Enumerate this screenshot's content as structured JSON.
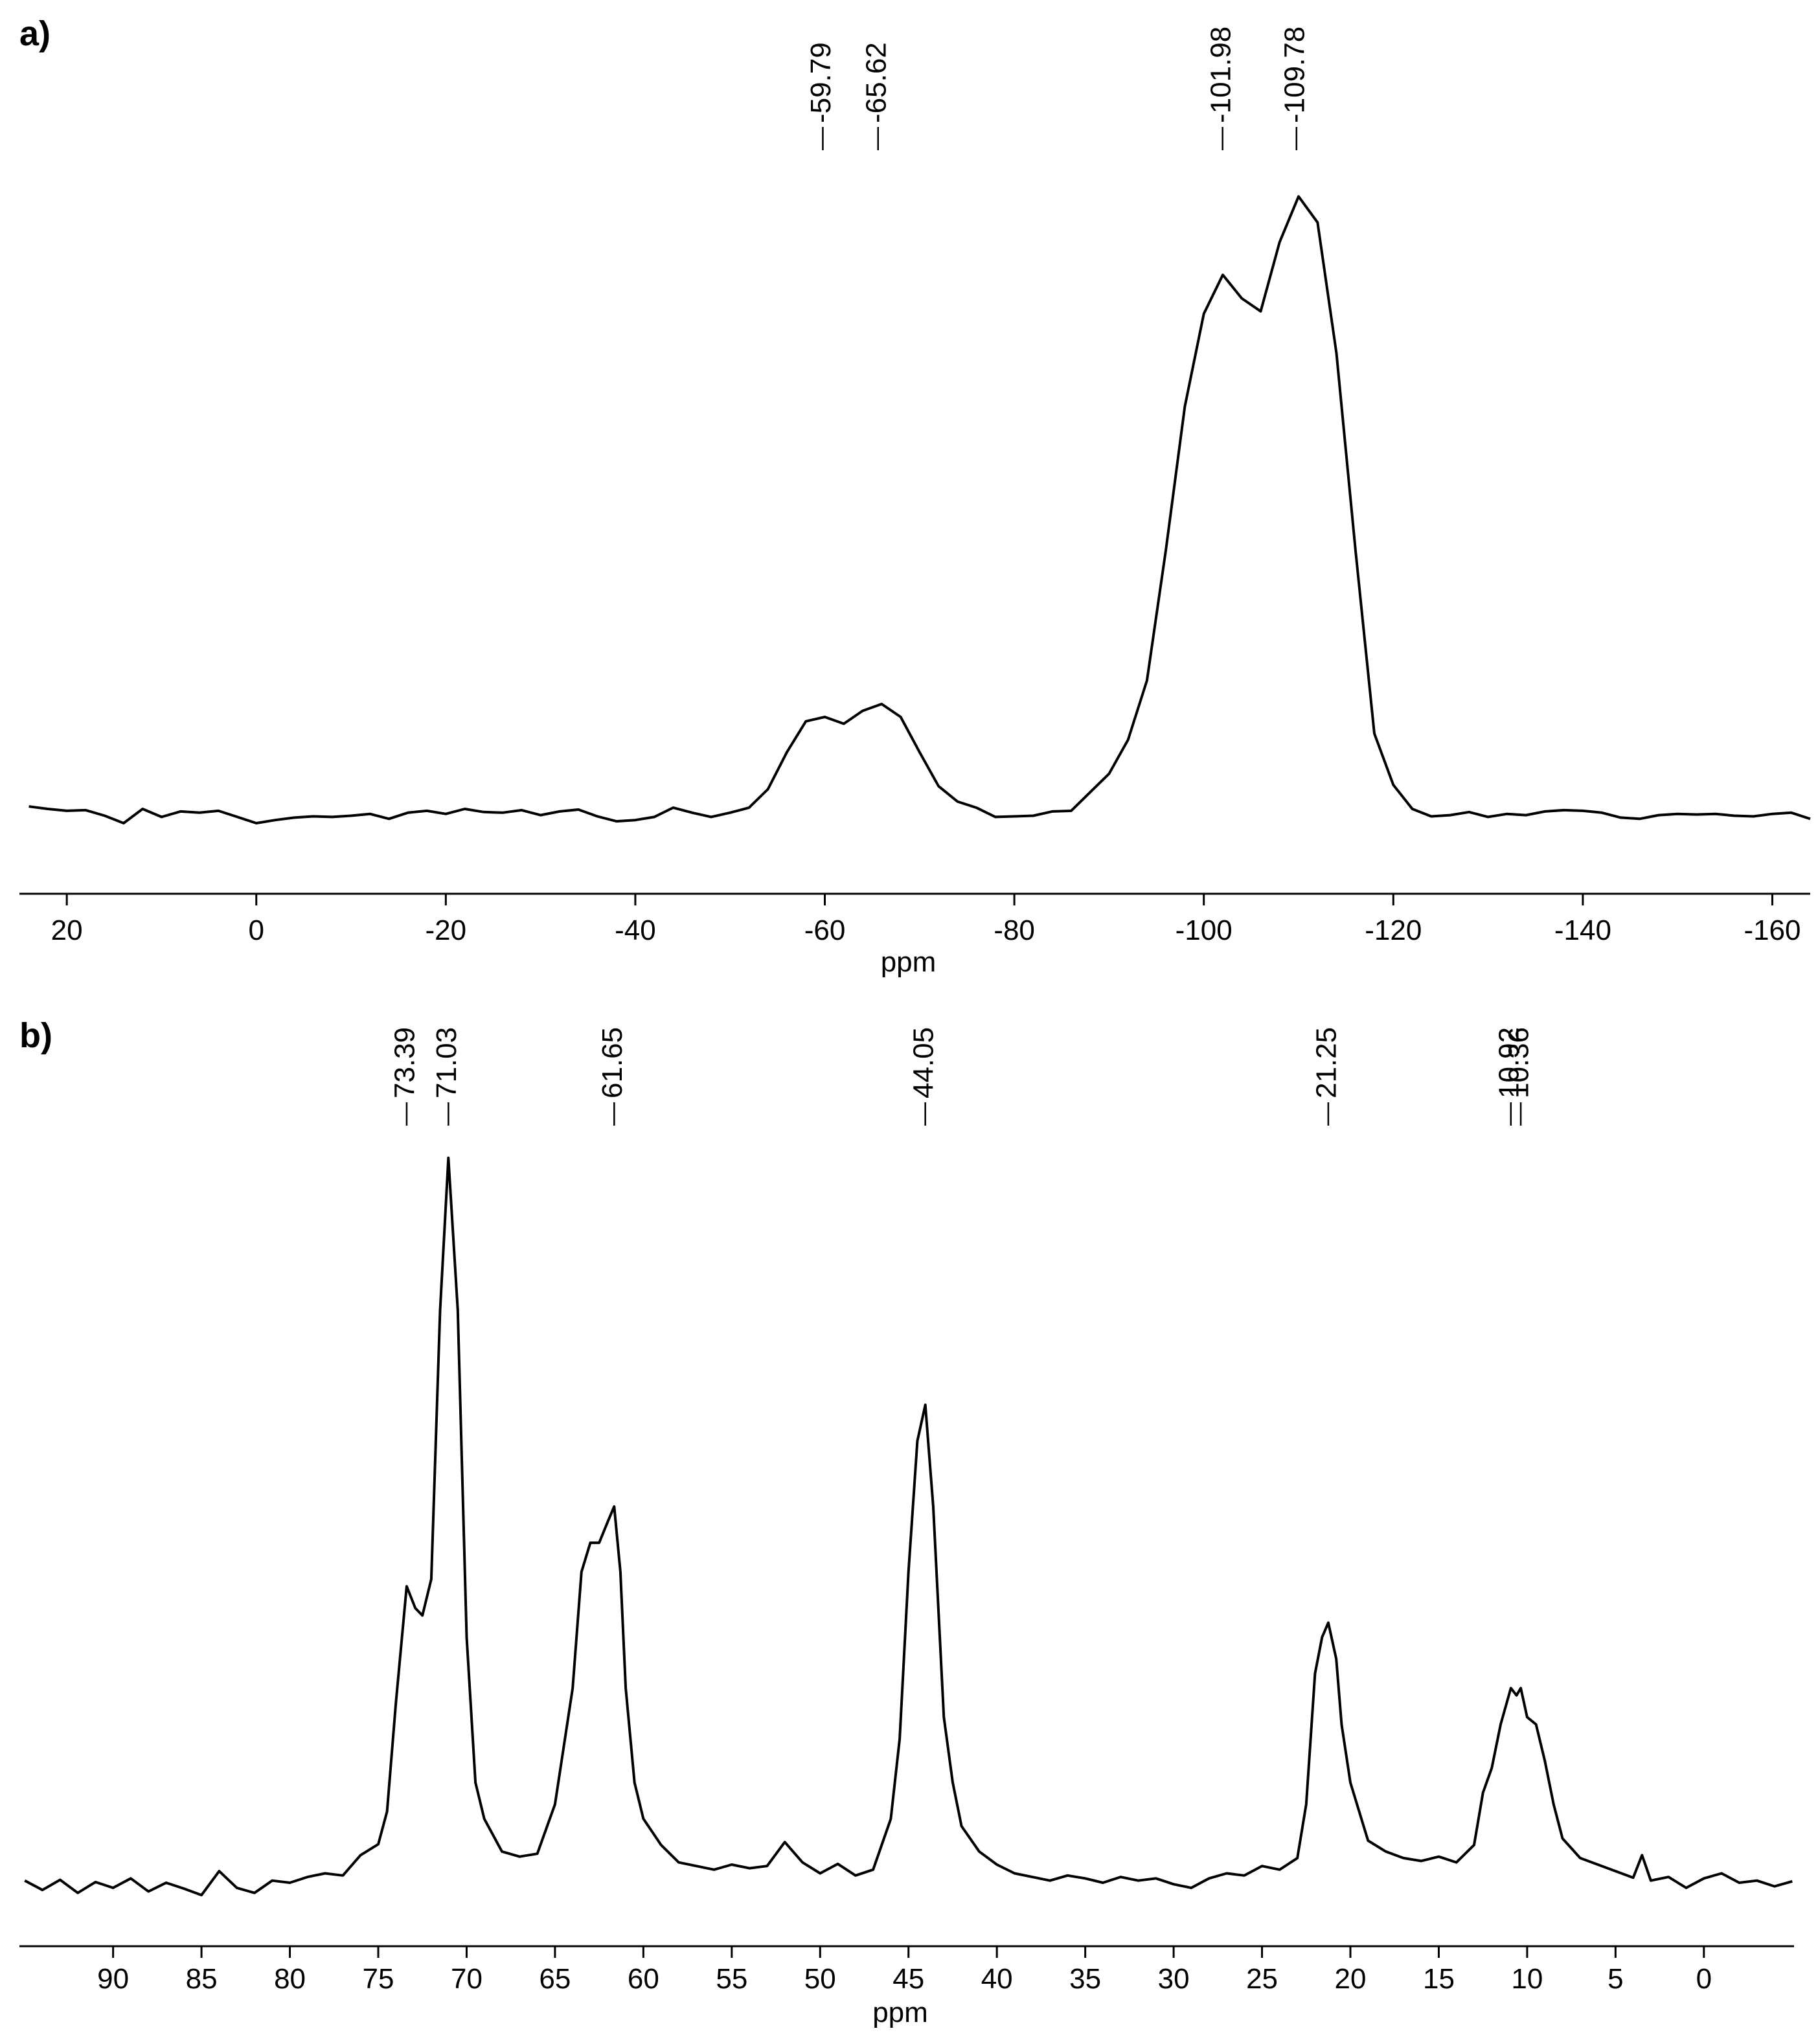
{
  "chart_data": [
    {
      "type": "line",
      "panel_label": "a)",
      "x_label": "ppm",
      "color": "#000000",
      "xlim": [
        25,
        -164
      ],
      "ylim": [
        -10,
        110
      ],
      "xticks": [
        20,
        0,
        -20,
        -40,
        -60,
        -80,
        -100,
        -120,
        -140,
        -160
      ],
      "annotations": [
        {
          "x": -59.79,
          "label": "-59.79"
        },
        {
          "x": -65.62,
          "label": "-65.62"
        },
        {
          "x": -101.98,
          "label": "-101.98"
        },
        {
          "x": -109.78,
          "label": "-109.78"
        }
      ],
      "x": [
        24,
        22,
        20,
        18,
        16,
        14,
        12,
        10,
        8,
        6,
        4,
        2,
        0,
        -2,
        -4,
        -6,
        -8,
        -10,
        -12,
        -14,
        -16,
        -18,
        -20,
        -22,
        -24,
        -26,
        -28,
        -30,
        -32,
        -34,
        -36,
        -38,
        -40,
        -42,
        -44,
        -46,
        -48,
        -50,
        -52,
        -54,
        -56,
        -58,
        -60,
        -62,
        -64,
        -66,
        -68,
        -70,
        -72,
        -74,
        -76,
        -78,
        -80,
        -82,
        -84,
        -86,
        -88,
        -90,
        -92,
        -94,
        -96,
        -98,
        -100,
        -102,
        -104,
        -106,
        -108,
        -110,
        -112,
        -114,
        -116,
        -118,
        -120,
        -122,
        -124,
        -126,
        -128,
        -130,
        -132,
        -134,
        -136,
        -138,
        -140,
        -142,
        -144,
        -146,
        -148,
        -150,
        -152,
        -154,
        -156,
        -158,
        -160,
        -162,
        -164
      ],
      "values": [
        1.2,
        0.8,
        0.5,
        0.6,
        -0.3,
        -1.5,
        0.8,
        -0.5,
        0.4,
        0.2,
        0.5,
        -0.5,
        -1.5,
        -1,
        -0.6,
        -0.4,
        -0.5,
        -0.3,
        0,
        -0.8,
        0.2,
        0.5,
        0,
        0.8,
        0.3,
        0.2,
        0.6,
        -0.2,
        0.4,
        0.7,
        -0.4,
        -1.2,
        -1,
        -0.5,
        1,
        0.2,
        -0.5,
        0.2,
        1,
        4,
        10,
        15,
        15.7,
        14.6,
        16.7,
        17.8,
        15.7,
        10,
        4.5,
        2,
        1,
        -0.5,
        -0.4,
        -0.3,
        0.4,
        0.5,
        3.5,
        6.5,
        12,
        21.6,
        42.8,
        66,
        81,
        87.3,
        83.5,
        81.4,
        92.6,
        100,
        95.8,
        74.6,
        42.8,
        13,
        4.7,
        0.8,
        -0.4,
        -0.2,
        0.3,
        -0.5,
        0,
        -0.2,
        0.4,
        0.6,
        0.5,
        0.2,
        -0.6,
        -0.8,
        -0.2,
        0,
        -0.1,
        0,
        -0.3,
        -0.4,
        0,
        0.2,
        -0.8
      ]
    },
    {
      "type": "line",
      "panel_label": "b)",
      "x_label": "ppm",
      "color": "#000000",
      "xlim": [
        95.3,
        -5.1
      ],
      "ylim": [
        -8,
        108
      ],
      "xticks": [
        90,
        85,
        80,
        75,
        70,
        65,
        60,
        55,
        50,
        45,
        40,
        35,
        30,
        25,
        20,
        15,
        10,
        5,
        0
      ],
      "annotations": [
        {
          "x": 73.39,
          "label": "73.39"
        },
        {
          "x": 71.03,
          "label": "71.03"
        },
        {
          "x": 61.65,
          "label": "61.65"
        },
        {
          "x": 44.05,
          "label": "44.05"
        },
        {
          "x": 21.25,
          "label": "21.25"
        },
        {
          "x": 10.92,
          "label": "10.92"
        },
        {
          "x": 10.36,
          "label": "10.36"
        }
      ],
      "x": [
        95,
        94,
        93,
        92,
        91,
        90,
        89,
        88,
        87,
        86,
        85,
        84,
        83,
        82,
        81,
        80,
        79,
        78,
        77,
        76,
        75,
        74.5,
        74,
        73.39,
        72.9,
        72.5,
        72,
        71.5,
        71.03,
        70.5,
        70,
        69.5,
        69,
        68,
        67,
        66,
        65,
        64,
        63.5,
        63,
        62.5,
        62,
        61.65,
        61.3,
        61,
        60.5,
        60,
        59,
        58,
        57,
        56,
        55,
        54,
        53,
        52,
        51,
        50,
        49,
        48,
        47,
        46,
        45.5,
        45,
        44.5,
        44.05,
        43.6,
        43,
        42.5,
        42,
        41,
        40,
        39,
        38,
        37,
        36,
        35,
        34,
        33,
        32,
        31,
        30,
        29,
        28,
        27,
        26,
        25,
        24,
        23,
        22.5,
        22,
        21.6,
        21.25,
        20.8,
        20.5,
        20,
        19.5,
        19,
        18,
        17,
        16,
        15,
        14,
        13,
        12.5,
        12,
        11.5,
        10.92,
        10.6,
        10.36,
        10,
        9.5,
        9,
        8.5,
        8,
        7,
        6,
        5,
        4,
        3.5,
        3,
        2,
        1,
        0,
        -1,
        -2,
        -3,
        -4,
        -5
      ],
      "values": [
        0.5,
        -0.8,
        0.6,
        -1.2,
        0.3,
        -0.5,
        0.8,
        -1,
        0.2,
        -0.6,
        -1.5,
        1.8,
        -0.5,
        -1.2,
        0.5,
        0.2,
        1,
        1.5,
        1.2,
        4,
        5.5,
        10,
        25,
        41,
        38,
        37,
        42,
        79,
        100,
        79,
        34,
        14,
        9,
        4.5,
        3.8,
        4.2,
        11,
        27,
        43,
        47,
        47,
        50,
        52,
        43,
        27,
        14,
        9,
        5.4,
        3,
        2.5,
        2,
        2.7,
        2.2,
        2.5,
        5.8,
        3,
        1.5,
        2.8,
        1.2,
        2,
        9,
        20,
        43,
        61,
        66,
        52,
        23,
        14,
        8,
        4.5,
        2.7,
        1.5,
        1,
        0.5,
        1.2,
        0.8,
        0.2,
        1,
        0.5,
        0.8,
        0,
        -0.5,
        0.8,
        1.5,
        1.2,
        2.5,
        2,
        3.6,
        11,
        29,
        34,
        36,
        31,
        22,
        14,
        10,
        6,
        4.5,
        3.6,
        3.2,
        3.8,
        3,
        5.4,
        12.6,
        16,
        22,
        27,
        26,
        27,
        23,
        22,
        17,
        11,
        6.3,
        3.6,
        2.7,
        1.8,
        0.9,
        4,
        0.5,
        1,
        -0.5,
        0.8,
        1.5,
        0.2,
        0.5,
        -0.3,
        0.4
      ]
    }
  ]
}
